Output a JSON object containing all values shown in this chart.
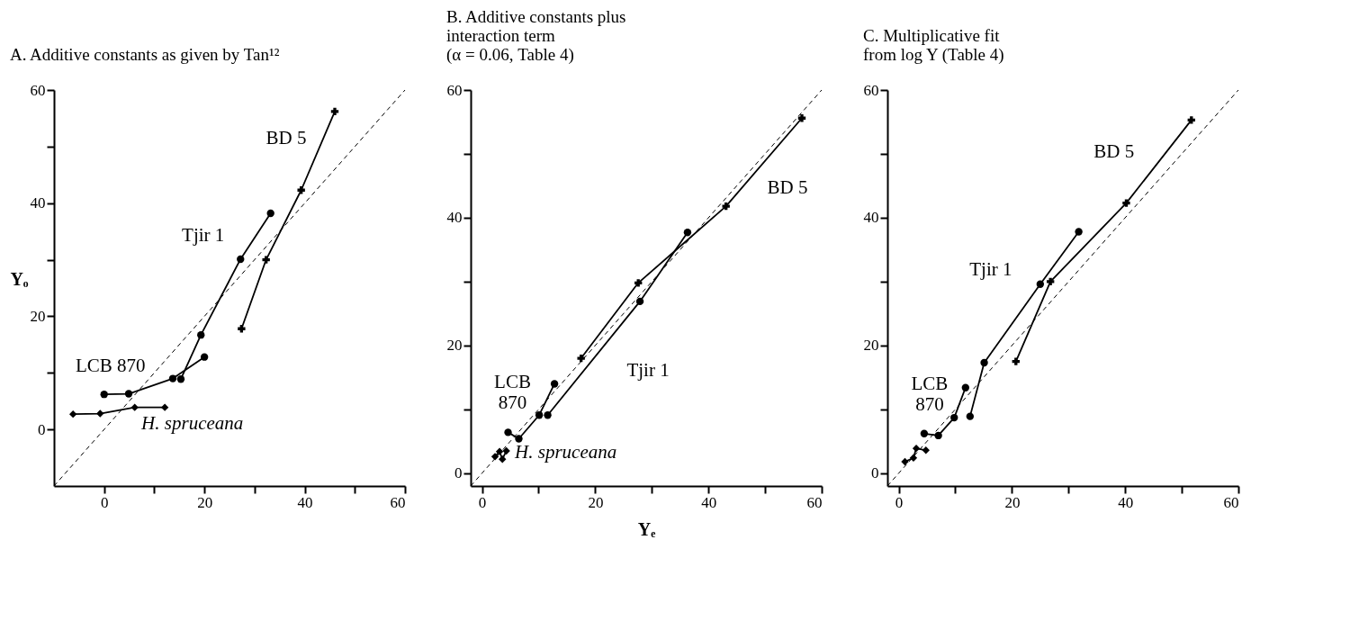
{
  "chart_data": [
    {
      "type": "line",
      "title": "A. Additive constants as given by Tan¹²",
      "ylabel": "Yₒ",
      "grid": false,
      "xlim": [
        -10,
        60
      ],
      "ylim": [
        -10,
        60
      ],
      "xticks": [
        0,
        {
          "value": 10,
          "label": null
        },
        20,
        {
          "value": 30,
          "label": null
        },
        40,
        {
          "value": 50,
          "label": null
        },
        60
      ],
      "yticks": [
        0,
        {
          "value": 10,
          "label": null
        },
        20,
        {
          "value": 30,
          "label": null
        },
        40,
        {
          "value": 50,
          "label": null
        },
        60
      ],
      "series": [
        {
          "name": "H. spruceana",
          "color": "#000000",
          "marker": "diamond",
          "x": [
            -6.2,
            -0.8,
            6.1,
            12.1
          ],
          "values": [
            2.7,
            2.8,
            3.9,
            3.9
          ]
        },
        {
          "name": "LCB 870",
          "color": "#000000",
          "marker": "circle",
          "x": [
            0,
            4.9,
            13.7,
            20
          ],
          "values": [
            6.2,
            6.3,
            9.0,
            12.8
          ]
        },
        {
          "name": "Tjir 1",
          "color": "#000000",
          "marker": "circle",
          "x": [
            15.3,
            19.3,
            27.2,
            33.2
          ],
          "values": [
            8.9,
            16.7,
            30.1,
            38.2
          ]
        },
        {
          "name": "BD 5",
          "color": "#000000",
          "marker": "cross",
          "x": [
            27.4,
            32.3,
            39.3,
            46
          ],
          "values": [
            17.8,
            30.0,
            42.3,
            56.2
          ]
        },
        {
          "color": "#000000",
          "marker": "none",
          "line_style": "dashed",
          "x": [
            -10,
            60
          ],
          "values": [
            -10,
            60
          ]
        }
      ]
    },
    {
      "type": "line",
      "title": "B. Additive constants plus\ninteraction term\n(α = 0.06, Table 4)",
      "xlabel": "Yₑ",
      "grid": false,
      "xlim": [
        -2,
        60
      ],
      "ylim": [
        -2,
        60
      ],
      "xticks": [
        0,
        {
          "value": 10,
          "label": null
        },
        20,
        {
          "value": 30,
          "label": null
        },
        40,
        {
          "value": 50,
          "label": null
        },
        60
      ],
      "yticks": [
        0,
        {
          "value": 10,
          "label": null
        },
        20,
        {
          "value": 30,
          "label": null
        },
        40,
        {
          "value": 50,
          "label": null
        },
        60
      ],
      "series": [
        {
          "name": "H. spruceana",
          "color": "#000000",
          "marker": "diamond",
          "x": [
            2.3,
            3.1,
            3.6,
            4.3
          ],
          "values": [
            2.6,
            3.4,
            2.2,
            3.5
          ]
        },
        {
          "name": "LCB\n870",
          "color": "#000000",
          "marker": "circle",
          "x": [
            4.6,
            6.5,
            10.1,
            12.8
          ],
          "values": [
            6.4,
            5.4,
            9.1,
            14.0
          ]
        },
        {
          "name": "Tjir 1",
          "color": "#000000",
          "marker": "circle",
          "x": [
            11.6,
            27.9,
            36.3
          ],
          "values": [
            9.1,
            26.9,
            37.7
          ]
        },
        {
          "name": "BD 5",
          "color": "#000000",
          "marker": "cross",
          "x": [
            17.5,
            27.6,
            43.1,
            56.5
          ],
          "values": [
            18.0,
            29.8,
            41.8,
            55.6
          ]
        },
        {
          "color": "#000000",
          "marker": "none",
          "line_style": "dashed",
          "x": [
            -2,
            60
          ],
          "values": [
            -2,
            60
          ]
        }
      ]
    },
    {
      "type": "line",
      "title": "C. Multiplicative fit\nfrom log Y (Table 4)",
      "grid": false,
      "xlim": [
        -2,
        60
      ],
      "ylim": [
        -2,
        60
      ],
      "xticks": [
        0,
        {
          "value": 10,
          "label": null
        },
        20,
        {
          "value": 30,
          "label": null
        },
        40,
        {
          "value": 50,
          "label": null
        },
        60
      ],
      "yticks": [
        0,
        {
          "value": 10,
          "label": null
        },
        20,
        {
          "value": 30,
          "label": null
        },
        40,
        {
          "value": 50,
          "label": null
        },
        60
      ],
      "series": [
        {
          "color": "#000000",
          "marker": "diamond",
          "x": [
            1.1,
            2.6,
            3.1,
            4.8
          ],
          "values": [
            1.8,
            2.4,
            3.9,
            3.6
          ]
        },
        {
          "name": "LCB\n870",
          "color": "#000000",
          "marker": "circle",
          "x": [
            4.5,
            7.0,
            9.8,
            11.8
          ],
          "values": [
            6.2,
            5.9,
            8.7,
            13.4
          ]
        },
        {
          "name": "Tjir 1",
          "color": "#000000",
          "marker": "circle",
          "x": [
            12.6,
            15.1,
            25.0,
            31.8
          ],
          "values": [
            8.9,
            17.3,
            29.6,
            37.8
          ]
        },
        {
          "name": "BD 5",
          "color": "#000000",
          "marker": "cross",
          "x": [
            20.7,
            26.8,
            40.2,
            51.7
          ],
          "values": [
            17.5,
            30.0,
            42.3,
            55.3
          ]
        },
        {
          "color": "#000000",
          "marker": "none",
          "line_style": "dashed",
          "x": [
            -2,
            60
          ],
          "values": [
            -2,
            60
          ]
        }
      ]
    }
  ]
}
